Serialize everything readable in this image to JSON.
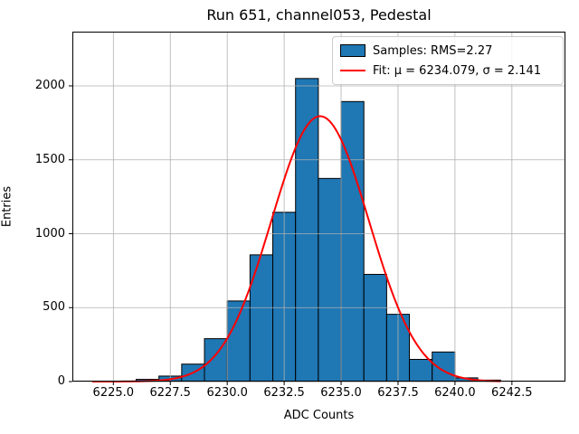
{
  "chart_data": {
    "type": "bar",
    "subtype": "histogram-with-gaussian-fit",
    "title": "Run 651, channel053, Pedestal",
    "xlabel": "ADC Counts",
    "ylabel": "Entries",
    "xlim": [
      6223.2,
      6244.85
    ],
    "ylim": [
      0,
      2367
    ],
    "grid": true,
    "legend_position": "upper right",
    "x_ticks": [
      6225.0,
      6227.5,
      6230.0,
      6232.5,
      6235.0,
      6237.5,
      6240.0,
      6242.5
    ],
    "x_tick_labels": [
      "6225.0",
      "6227.5",
      "6230.0",
      "6232.5",
      "6235.0",
      "6237.5",
      "6240.0",
      "6242.5"
    ],
    "y_ticks": [
      0,
      500,
      1000,
      1500,
      2000
    ],
    "y_tick_labels": [
      "0",
      "500",
      "1000",
      "1500",
      "2000"
    ],
    "bin_edges": [
      6226,
      6227,
      6228,
      6229,
      6230,
      6231,
      6232,
      6233,
      6234,
      6235,
      6236,
      6237,
      6238,
      6239,
      6240,
      6241,
      6242
    ],
    "counts": [
      15,
      37,
      118,
      290,
      545,
      857,
      1145,
      2050,
      1374,
      1894,
      725,
      455,
      150,
      200,
      25,
      10
    ],
    "fit": {
      "mu": 6234.079,
      "sigma": 2.141,
      "amplitude": 1795,
      "x_start": 6224.07,
      "x_end": 6242.0
    },
    "colors": {
      "bar_fill": "#1f77b4",
      "bar_edge": "#000000",
      "fit_line": "#ff0000",
      "grid_line": "#b0b0b0",
      "spine": "#000000"
    },
    "legend": [
      {
        "type": "patch",
        "label": "Samples: RMS=2.27"
      },
      {
        "type": "line",
        "label": "Fit: μ = 6234.079, σ = 2.141"
      }
    ]
  }
}
